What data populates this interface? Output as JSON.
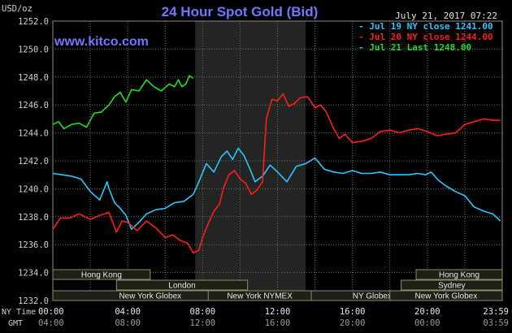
{
  "header": {
    "unit": "USD/oz",
    "title": "24 Hour Spot Gold (Bid)",
    "timestamp": "July 21, 2017 07:22",
    "site": "www.kitco.com"
  },
  "colors": {
    "background": "#000000",
    "grid": "#6f6f6f",
    "title": "#6f77ff",
    "site": "#6f77ff",
    "axis_text": "#cfcfcf",
    "jul19": "#29c7ff",
    "jul20": "#ff1c1c",
    "jul21": "#1fe01f",
    "session_bg": "#1d2014",
    "session_border": "#8e8a6c",
    "highlight": "#222522"
  },
  "legend": [
    {
      "label": "- Jul 19 NY close 1241.00",
      "series": "jul19"
    },
    {
      "label": "- Jul 20 NY close 1244.00",
      "series": "jul20"
    },
    {
      "label": "- Jul 21 Last 1248.00",
      "series": "jul21"
    }
  ],
  "x_axis": {
    "row1_label": "NY Time",
    "row2_label": "GMT",
    "ny_ticks": [
      "00:00",
      "04:00",
      "08:00",
      "12:00",
      "16:00",
      "20:00",
      "23:59"
    ],
    "gmt_ticks": [
      "04:00",
      "08:00",
      "12:00",
      "16:00",
      "20:00",
      "00:00",
      "03:59"
    ]
  },
  "sessions": [
    {
      "label": "Hong Kong",
      "row": 0
    },
    {
      "label": "London",
      "row": 1
    },
    {
      "label": "New York Globex",
      "row": 2
    },
    {
      "label": "New York NYMEX",
      "row": 2
    },
    {
      "label": "NY Globex",
      "row": 2
    },
    {
      "label": "Hong Kong",
      "row": 0
    },
    {
      "label": "Sydney",
      "row": 1
    },
    {
      "label": "New York Globex",
      "row": 2
    }
  ],
  "chart_data": {
    "type": "line",
    "title": "24 Hour Spot Gold (Bid)",
    "ylabel": "USD/oz",
    "xlabel": "NY Time",
    "ylim": [
      1232.0,
      1252.0
    ],
    "xlim_hours": [
      0,
      24
    ],
    "y_ticks": [
      1232.0,
      1234.0,
      1236.0,
      1238.0,
      1240.0,
      1242.0,
      1244.0,
      1246.0,
      1248.0,
      1250.0,
      1252.0
    ],
    "x_ticks_hours": [
      0,
      4,
      8,
      12,
      16,
      20,
      24
    ],
    "highlight_range_hours": [
      7.6,
      13.5
    ],
    "grid": true,
    "legend_position": "top-right",
    "series": [
      {
        "name": "Jul 19 NY close 1241.00",
        "color_key": "jul19",
        "x": [
          0,
          0.5,
          1,
          1.5,
          2,
          2.5,
          2.9,
          3,
          3.3,
          3.6,
          3.9,
          4.2,
          4.6,
          5,
          5.5,
          6,
          6.5,
          7,
          7.5,
          7.8,
          8.2,
          8.6,
          9,
          9.3,
          9.6,
          9.9,
          10.2,
          10.5,
          10.8,
          11.2,
          11.6,
          12,
          12.5,
          13,
          13.5,
          14,
          14.5,
          15,
          15.5,
          16,
          16.5,
          17,
          17.5,
          18,
          18.5,
          19,
          19.5,
          19.9,
          20.2,
          20.6,
          21,
          21.5,
          22,
          22.5,
          23,
          23.5,
          23.9
        ],
        "y": [
          1241.1,
          1241.0,
          1240.9,
          1240.7,
          1239.8,
          1239.2,
          1240.5,
          1240.0,
          1239.0,
          1238.6,
          1238.1,
          1237.1,
          1237.6,
          1238.2,
          1238.5,
          1238.6,
          1239.0,
          1239.1,
          1239.6,
          1240.5,
          1241.8,
          1241.2,
          1242.3,
          1242.7,
          1242.1,
          1242.9,
          1242.4,
          1241.5,
          1240.5,
          1240.9,
          1241.7,
          1241.2,
          1240.5,
          1241.6,
          1241.8,
          1242.2,
          1241.4,
          1241.2,
          1241.1,
          1241.3,
          1241.1,
          1241.1,
          1241.2,
          1241.0,
          1241.0,
          1241.0,
          1241.1,
          1241.0,
          1241.2,
          1240.6,
          1240.2,
          1239.8,
          1239.5,
          1238.7,
          1238.4,
          1238.2,
          1237.7
        ]
      },
      {
        "name": "Jul 20 NY close 1244.00",
        "color_key": "jul20",
        "x": [
          0,
          0.4,
          0.9,
          1.4,
          2,
          2.5,
          3,
          3.4,
          3.7,
          4,
          4.5,
          5,
          5.5,
          6,
          6.4,
          6.8,
          7.2,
          7.5,
          7.8,
          8,
          8.3,
          8.6,
          8.9,
          9.1,
          9.4,
          9.7,
          10,
          10.3,
          10.6,
          10.9,
          11.2,
          11.4,
          11.7,
          12,
          12.3,
          12.6,
          12.9,
          13.2,
          13.6,
          14,
          14.3,
          14.6,
          15,
          15.3,
          15.6,
          16,
          16.5,
          17,
          17.5,
          18,
          18.5,
          19,
          19.5,
          20,
          20.5,
          21,
          21.5,
          22,
          22.5,
          23,
          23.5,
          23.9
        ],
        "y": [
          1237.1,
          1237.9,
          1237.9,
          1238.2,
          1237.8,
          1238.1,
          1238.3,
          1236.9,
          1237.7,
          1237.6,
          1237.0,
          1237.7,
          1237.2,
          1236.5,
          1236.7,
          1236.3,
          1236.1,
          1235.4,
          1235.6,
          1236.5,
          1237.5,
          1238.4,
          1238.9,
          1240.0,
          1241.0,
          1241.3,
          1240.7,
          1240.4,
          1239.6,
          1239.9,
          1240.5,
          1245.0,
          1246.4,
          1246.3,
          1246.8,
          1245.9,
          1246.1,
          1246.5,
          1246.6,
          1245.8,
          1246.0,
          1245.5,
          1244.3,
          1243.6,
          1243.9,
          1243.3,
          1243.4,
          1243.6,
          1244.1,
          1244.2,
          1244.0,
          1244.2,
          1244.3,
          1244.1,
          1243.8,
          1243.9,
          1244.0,
          1244.6,
          1244.8,
          1245.0,
          1244.9,
          1244.9
        ]
      },
      {
        "name": "Jul 21 Last 1248.00",
        "color_key": "jul21",
        "x": [
          0,
          0.3,
          0.6,
          1,
          1.4,
          1.8,
          2.2,
          2.6,
          3,
          3.3,
          3.6,
          3.9,
          4.2,
          4.6,
          5,
          5.4,
          5.8,
          6.2,
          6.5,
          6.7,
          6.9,
          7.1,
          7.3,
          7.5
        ],
        "y": [
          1244.6,
          1244.8,
          1244.3,
          1244.6,
          1244.7,
          1244.4,
          1245.4,
          1245.5,
          1246.0,
          1246.6,
          1246.9,
          1246.2,
          1247.1,
          1247.0,
          1247.8,
          1247.3,
          1247.0,
          1247.5,
          1247.3,
          1247.8,
          1247.3,
          1247.5,
          1248.1,
          1247.9
        ]
      }
    ]
  }
}
